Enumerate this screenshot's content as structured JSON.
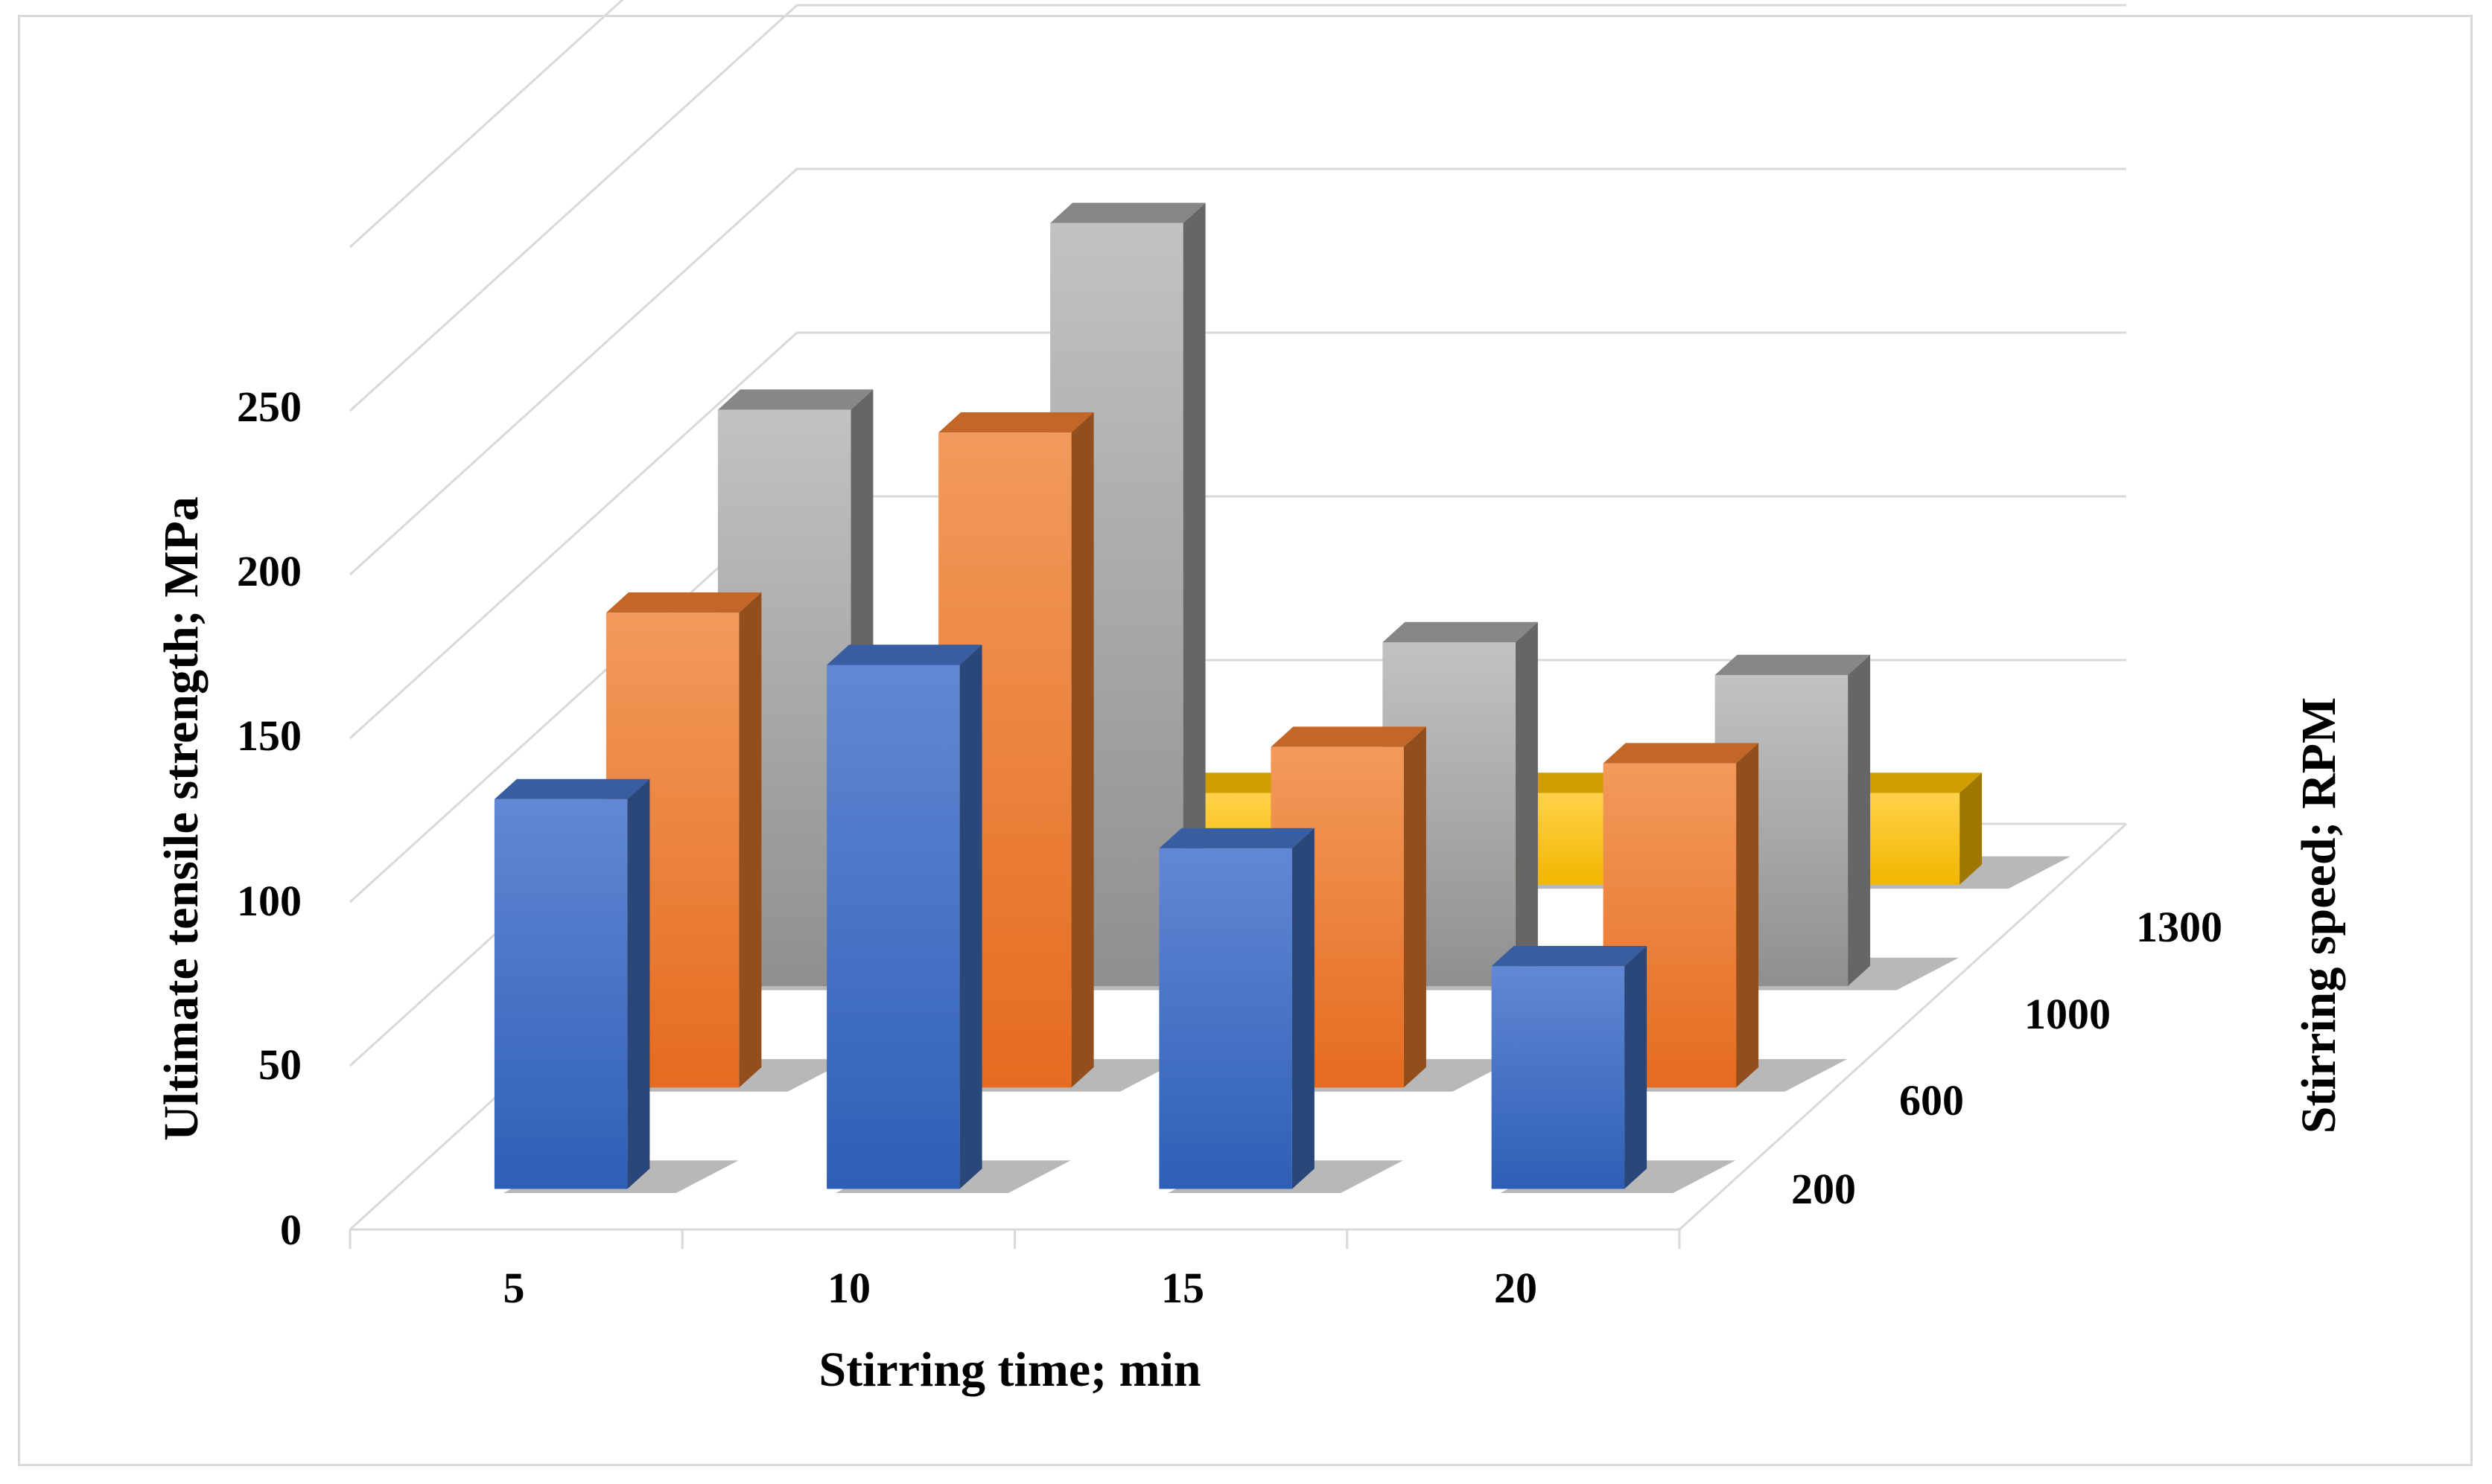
{
  "chart_data": {
    "type": "bar3d",
    "title": "",
    "xlabel": "Stirring time; min",
    "ylabel": "Ultimate tensile strength; MPa",
    "zlabel": "Stirring speed; RPM",
    "categories": [
      "5",
      "10",
      "15",
      "20"
    ],
    "y_ticks": [
      "0",
      "50",
      "100",
      "150",
      "200",
      "250"
    ],
    "ylim": [
      0,
      300
    ],
    "grid": true,
    "series": [
      {
        "name": "200",
        "color": "#4472C4",
        "values": [
          119,
          160,
          104,
          68
        ]
      },
      {
        "name": "600",
        "color": "#ED7D31",
        "values": [
          145,
          200,
          104,
          99
        ]
      },
      {
        "name": "1000",
        "color": "#A5A5A5",
        "values": [
          176,
          233,
          105,
          95
        ]
      },
      {
        "name": "1300",
        "color": "#FFC000",
        "values": [
          28,
          28,
          28,
          28
        ]
      }
    ]
  }
}
